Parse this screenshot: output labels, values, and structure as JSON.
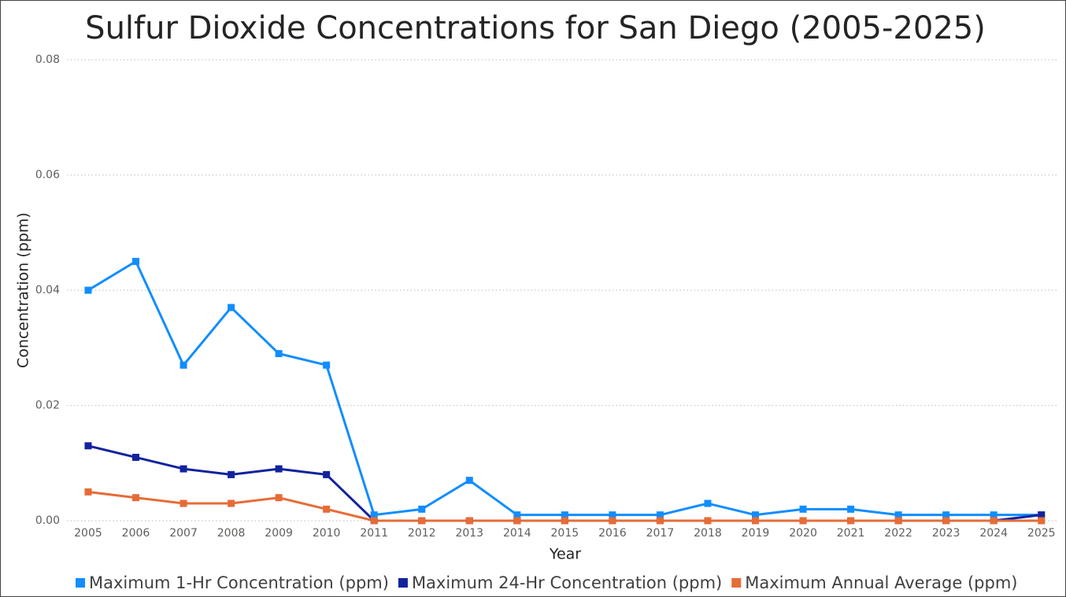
{
  "chart_data": {
    "type": "line",
    "title": "Sulfur Dioxide Concentrations for San Diego (2005-2025)",
    "x_label": "Year",
    "y_label": "Concentration (ppm)",
    "categories": [
      "2005",
      "2006",
      "2007",
      "2008",
      "2009",
      "2010",
      "2011",
      "2012",
      "2013",
      "2014",
      "2015",
      "2016",
      "2017",
      "2018",
      "2019",
      "2020",
      "2021",
      "2022",
      "2023",
      "2024",
      "2025"
    ],
    "series": [
      {
        "name": "Maximum 1-Hr Concentration (ppm)",
        "color": "#118dff",
        "values": [
          0.04,
          0.045,
          0.027,
          0.037,
          0.029,
          0.027,
          0.001,
          0.002,
          0.007,
          0.001,
          0.001,
          0.001,
          0.001,
          0.003,
          0.001,
          0.002,
          0.002,
          0.001,
          0.001,
          0.001,
          0.001
        ]
      },
      {
        "name": "Maximum 24-Hr Concentration (ppm)",
        "color": "#12239e",
        "values": [
          0.013,
          0.011,
          0.009,
          0.008,
          0.009,
          0.008,
          0,
          0,
          0,
          0,
          0,
          0,
          0,
          0,
          0,
          0,
          0,
          0,
          0,
          0,
          0.001
        ]
      },
      {
        "name": "Maximum Annual Average (ppm)",
        "color": "#e66c37",
        "values": [
          0.005,
          0.004,
          0.003,
          0.003,
          0.004,
          0.002,
          0,
          0,
          0,
          0,
          0,
          0,
          0,
          0,
          0,
          0,
          0,
          0,
          0,
          0,
          0
        ]
      }
    ],
    "ylim": [
      0,
      0.08
    ],
    "yticks": [
      {
        "value": 0,
        "label": "0.00"
      },
      0.02,
      0.04,
      0.06,
      0.08
    ],
    "grid": true,
    "legend": "bottom"
  }
}
